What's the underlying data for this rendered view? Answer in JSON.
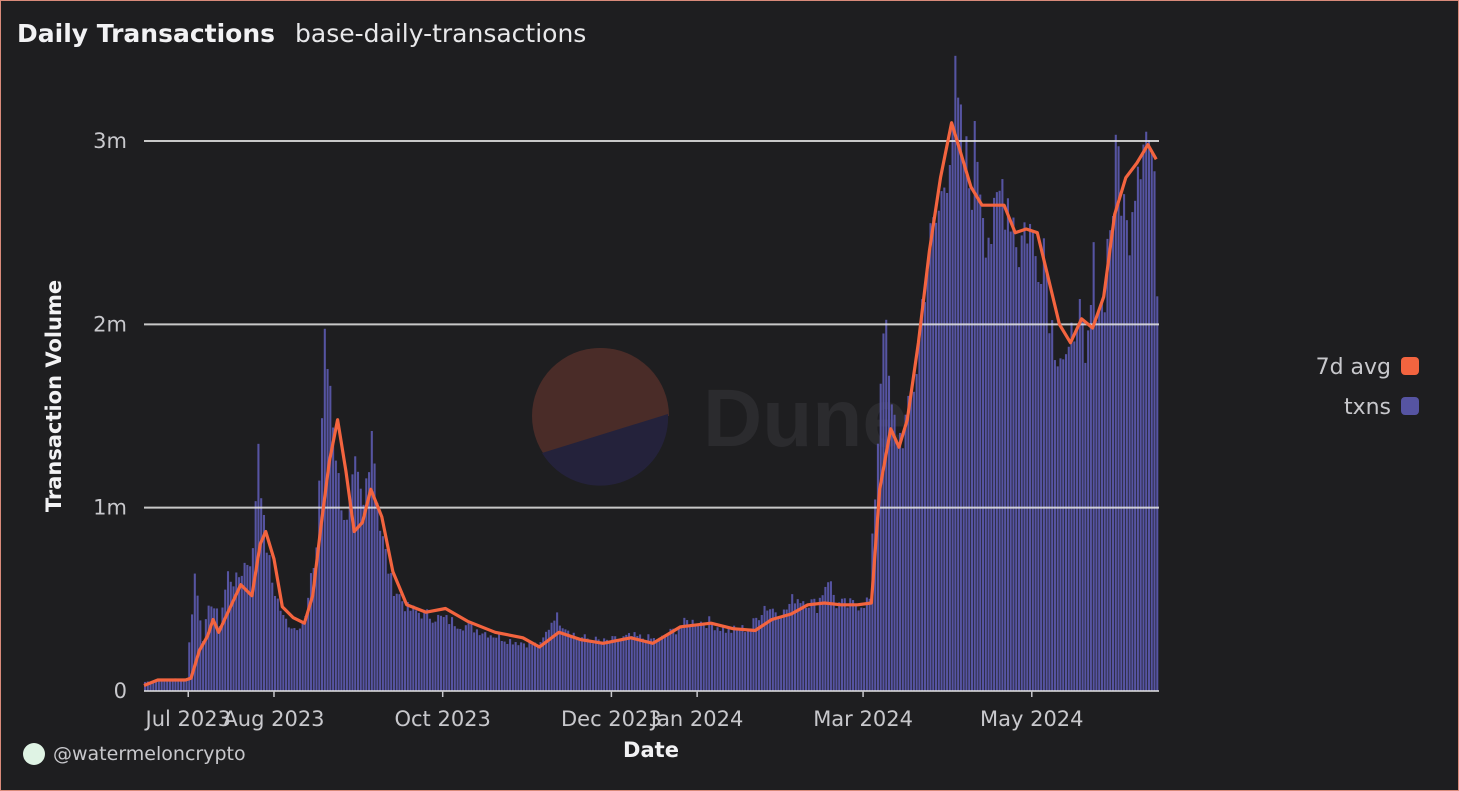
{
  "header": {
    "title": "Daily Transactions",
    "subtitle": "base-daily-transactions"
  },
  "footer": {
    "handle": "@watermeloncrypto"
  },
  "watermark": {
    "text": "Dune"
  },
  "colors": {
    "bars": "#5654a2",
    "line": "#f3643f",
    "gridline": "#e6e6e6",
    "background": "#1e1e20"
  },
  "chart_data": {
    "type": "bar",
    "xlabel": "Date",
    "ylabel": "Transaction Volume",
    "ylim": [
      0,
      3300000
    ],
    "yticks": [
      {
        "value": 0,
        "label": "0"
      },
      {
        "value": 1000000,
        "label": "1m"
      },
      {
        "value": 2000000,
        "label": "2m"
      },
      {
        "value": 3000000,
        "label": "3m"
      }
    ],
    "xticks": [
      {
        "date": "2023-07-01",
        "label": "Jul 2023"
      },
      {
        "date": "2023-08-01",
        "label": "Aug 2023"
      },
      {
        "date": "2023-10-01",
        "label": "Oct 2023"
      },
      {
        "date": "2023-12-01",
        "label": "Dec 2023"
      },
      {
        "date": "2024-01-01",
        "label": "Jan 2024"
      },
      {
        "date": "2024-03-01",
        "label": "Mar 2024"
      },
      {
        "date": "2024-05-01",
        "label": "May 2024"
      }
    ],
    "grid": true,
    "legend_position": "right",
    "series": [
      {
        "name": "txns",
        "kind": "bar",
        "color": "#5654a2",
        "points": [
          [
            "2023-06-15",
            50000
          ],
          [
            "2023-06-20",
            60000
          ],
          [
            "2023-06-25",
            65000
          ],
          [
            "2023-06-30",
            70000
          ],
          [
            "2023-07-03",
            640000
          ],
          [
            "2023-07-06",
            300000
          ],
          [
            "2023-07-09",
            500000
          ],
          [
            "2023-07-12",
            380000
          ],
          [
            "2023-07-15",
            640000
          ],
          [
            "2023-07-18",
            600000
          ],
          [
            "2023-07-21",
            700000
          ],
          [
            "2023-07-24",
            750000
          ],
          [
            "2023-07-26",
            1400000
          ],
          [
            "2023-07-28",
            900000
          ],
          [
            "2023-07-31",
            600000
          ],
          [
            "2023-08-04",
            400000
          ],
          [
            "2023-08-08",
            350000
          ],
          [
            "2023-08-12",
            400000
          ],
          [
            "2023-08-16",
            800000
          ],
          [
            "2023-08-19",
            1880000
          ],
          [
            "2023-08-21",
            1700000
          ],
          [
            "2023-08-24",
            1150000
          ],
          [
            "2023-08-27",
            900000
          ],
          [
            "2023-08-30",
            1200000
          ],
          [
            "2023-09-02",
            1000000
          ],
          [
            "2023-09-05",
            1480000
          ],
          [
            "2023-09-08",
            900000
          ],
          [
            "2023-09-12",
            600000
          ],
          [
            "2023-09-18",
            450000
          ],
          [
            "2023-09-25",
            420000
          ],
          [
            "2023-10-05",
            380000
          ],
          [
            "2023-10-15",
            330000
          ],
          [
            "2023-10-25",
            280000
          ],
          [
            "2023-11-05",
            250000
          ],
          [
            "2023-11-10",
            420000
          ],
          [
            "2023-11-18",
            300000
          ],
          [
            "2023-11-28",
            270000
          ],
          [
            "2023-12-08",
            300000
          ],
          [
            "2023-12-18",
            280000
          ],
          [
            "2023-12-28",
            380000
          ],
          [
            "2024-01-05",
            380000
          ],
          [
            "2024-01-12",
            330000
          ],
          [
            "2024-01-20",
            350000
          ],
          [
            "2024-01-25",
            470000
          ],
          [
            "2024-02-01",
            430000
          ],
          [
            "2024-02-05",
            520000
          ],
          [
            "2024-02-09",
            500000
          ],
          [
            "2024-02-13",
            470000
          ],
          [
            "2024-02-17",
            630000
          ],
          [
            "2024-02-20",
            480000
          ],
          [
            "2024-02-24",
            470000
          ],
          [
            "2024-02-28",
            480000
          ],
          [
            "2024-03-03",
            500000
          ],
          [
            "2024-03-06",
            1400000
          ],
          [
            "2024-03-08",
            2100000
          ],
          [
            "2024-03-11",
            1500000
          ],
          [
            "2024-03-14",
            1400000
          ],
          [
            "2024-03-17",
            1500000
          ],
          [
            "2024-03-20",
            1800000
          ],
          [
            "2024-03-23",
            2300000
          ],
          [
            "2024-03-26",
            2500000
          ],
          [
            "2024-03-29",
            2700000
          ],
          [
            "2024-04-01",
            3100000
          ],
          [
            "2024-04-03",
            3250000
          ],
          [
            "2024-04-05",
            3000000
          ],
          [
            "2024-04-08",
            2800000
          ],
          [
            "2024-04-11",
            3000000
          ],
          [
            "2024-04-14",
            2600000
          ],
          [
            "2024-04-17",
            2500000
          ],
          [
            "2024-04-20",
            2800000
          ],
          [
            "2024-04-23",
            2700000
          ],
          [
            "2024-04-26",
            2450000
          ],
          [
            "2024-04-29",
            2600000
          ],
          [
            "2024-05-02",
            2400000
          ],
          [
            "2024-05-05",
            2500000
          ],
          [
            "2024-05-08",
            2000000
          ],
          [
            "2024-05-11",
            1900000
          ],
          [
            "2024-05-14",
            1750000
          ],
          [
            "2024-05-17",
            2200000
          ],
          [
            "2024-05-20",
            1700000
          ],
          [
            "2024-05-23",
            2300000
          ],
          [
            "2024-05-26",
            2100000
          ],
          [
            "2024-05-29",
            2600000
          ],
          [
            "2024-06-01",
            2950000
          ],
          [
            "2024-06-04",
            2500000
          ],
          [
            "2024-06-07",
            2900000
          ],
          [
            "2024-06-10",
            3150000
          ],
          [
            "2024-06-13",
            2950000
          ],
          [
            "2024-06-15",
            2350000
          ]
        ]
      },
      {
        "name": "7d avg",
        "kind": "line",
        "color": "#f3643f",
        "points": [
          [
            "2023-06-15",
            30000
          ],
          [
            "2023-06-20",
            60000
          ],
          [
            "2023-06-30",
            60000
          ],
          [
            "2023-07-02",
            70000
          ],
          [
            "2023-07-05",
            220000
          ],
          [
            "2023-07-08",
            300000
          ],
          [
            "2023-07-10",
            390000
          ],
          [
            "2023-07-12",
            320000
          ],
          [
            "2023-07-16",
            450000
          ],
          [
            "2023-07-20",
            580000
          ],
          [
            "2023-07-24",
            520000
          ],
          [
            "2023-07-27",
            800000
          ],
          [
            "2023-07-29",
            870000
          ],
          [
            "2023-08-01",
            720000
          ],
          [
            "2023-08-04",
            460000
          ],
          [
            "2023-08-08",
            400000
          ],
          [
            "2023-08-12",
            370000
          ],
          [
            "2023-08-15",
            520000
          ],
          [
            "2023-08-18",
            900000
          ],
          [
            "2023-08-21",
            1250000
          ],
          [
            "2023-08-24",
            1480000
          ],
          [
            "2023-08-27",
            1200000
          ],
          [
            "2023-08-30",
            870000
          ],
          [
            "2023-09-02",
            920000
          ],
          [
            "2023-09-05",
            1100000
          ],
          [
            "2023-09-09",
            950000
          ],
          [
            "2023-09-13",
            650000
          ],
          [
            "2023-09-18",
            470000
          ],
          [
            "2023-09-25",
            430000
          ],
          [
            "2023-10-02",
            450000
          ],
          [
            "2023-10-10",
            380000
          ],
          [
            "2023-10-20",
            320000
          ],
          [
            "2023-10-30",
            290000
          ],
          [
            "2023-11-05",
            240000
          ],
          [
            "2023-11-12",
            320000
          ],
          [
            "2023-11-20",
            280000
          ],
          [
            "2023-11-28",
            260000
          ],
          [
            "2023-12-08",
            290000
          ],
          [
            "2023-12-16",
            260000
          ],
          [
            "2023-12-26",
            350000
          ],
          [
            "2024-01-06",
            370000
          ],
          [
            "2024-01-14",
            340000
          ],
          [
            "2024-01-22",
            330000
          ],
          [
            "2024-01-28",
            390000
          ],
          [
            "2024-02-04",
            420000
          ],
          [
            "2024-02-10",
            470000
          ],
          [
            "2024-02-16",
            480000
          ],
          [
            "2024-02-22",
            470000
          ],
          [
            "2024-02-28",
            470000
          ],
          [
            "2024-03-04",
            480000
          ],
          [
            "2024-03-07",
            1100000
          ],
          [
            "2024-03-11",
            1430000
          ],
          [
            "2024-03-14",
            1330000
          ],
          [
            "2024-03-17",
            1480000
          ],
          [
            "2024-03-21",
            1900000
          ],
          [
            "2024-03-25",
            2400000
          ],
          [
            "2024-03-29",
            2800000
          ],
          [
            "2024-04-02",
            3100000
          ],
          [
            "2024-04-05",
            2950000
          ],
          [
            "2024-04-09",
            2750000
          ],
          [
            "2024-04-13",
            2650000
          ],
          [
            "2024-04-17",
            2650000
          ],
          [
            "2024-04-21",
            2650000
          ],
          [
            "2024-04-25",
            2500000
          ],
          [
            "2024-04-29",
            2520000
          ],
          [
            "2024-05-03",
            2500000
          ],
          [
            "2024-05-07",
            2250000
          ],
          [
            "2024-05-11",
            2000000
          ],
          [
            "2024-05-15",
            1900000
          ],
          [
            "2024-05-19",
            2030000
          ],
          [
            "2024-05-23",
            1980000
          ],
          [
            "2024-05-27",
            2150000
          ],
          [
            "2024-05-31",
            2600000
          ],
          [
            "2024-06-04",
            2800000
          ],
          [
            "2024-06-08",
            2880000
          ],
          [
            "2024-06-12",
            2980000
          ],
          [
            "2024-06-15",
            2900000
          ]
        ]
      }
    ]
  }
}
